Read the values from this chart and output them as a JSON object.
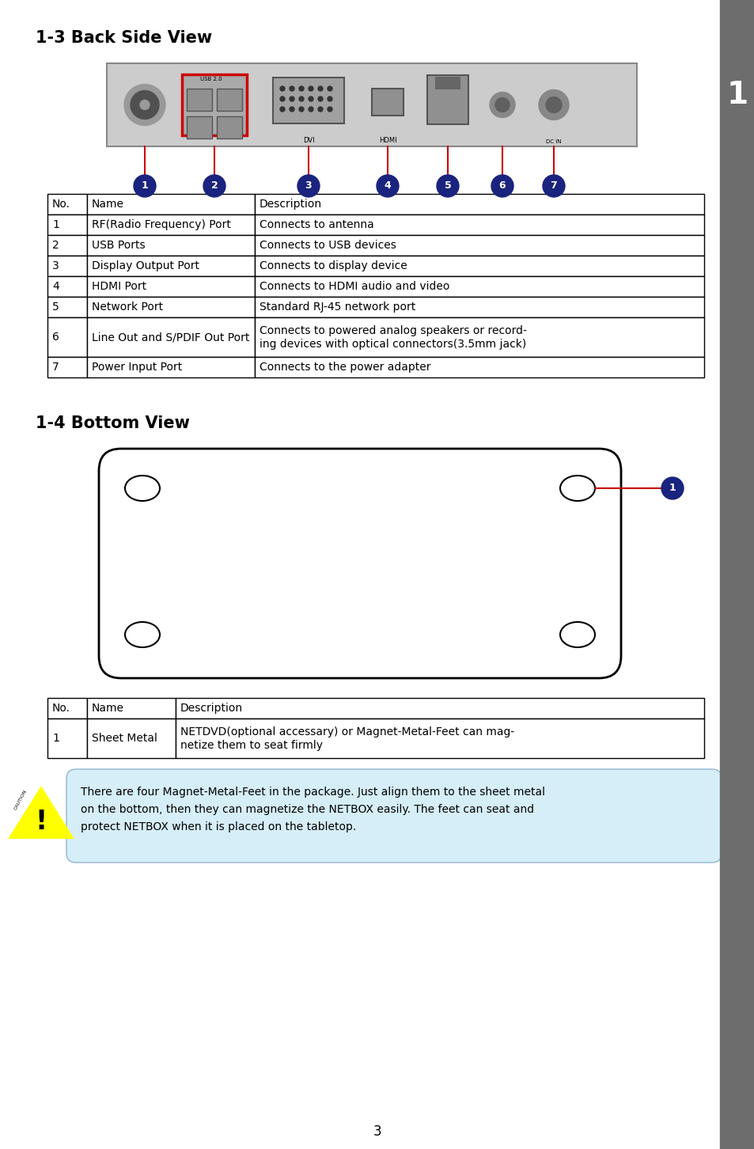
{
  "page_bg": "#ffffff",
  "title1": "1-3 Back Side View",
  "title2": "1-4 Bottom View",
  "section1_table": {
    "headers": [
      "No.",
      "Name",
      "Description"
    ],
    "rows": [
      [
        "1",
        "RF(Radio Frequency) Port",
        "Connects to antenna"
      ],
      [
        "2",
        "USB Ports",
        "Connects to USB devices"
      ],
      [
        "3",
        "Display Output Port",
        "Connects to display device"
      ],
      [
        "4",
        "HDMI Port",
        "Connects to HDMI audio and video"
      ],
      [
        "5",
        "Network Port",
        "Standard RJ-45 network port"
      ],
      [
        "6",
        "Line Out and S/PDIF Out Port",
        "Connects to powered analog speakers or record-\ning devices with optical connectors(3.5mm jack)"
      ],
      [
        "7",
        "Power Input Port",
        "Connects to the power adapter"
      ]
    ]
  },
  "section2_table": {
    "headers": [
      "No.",
      "Name",
      "Description"
    ],
    "rows": [
      [
        "1",
        "Sheet Metal",
        "NETDVD(optional accessary) or Magnet-Metal-Feet can mag-\nnetize them to seat firmly"
      ]
    ]
  },
  "caution_text": "There are four Magnet-Metal-Feet in the package. Just align them to the sheet metal\non the bottom, then they can magnetize the NETBOX easily. The feet can seat and\nprotect NETBOX when it is placed on the tabletop.",
  "page_number": "3",
  "sidebar_color": "#6d6d6d",
  "sidebar_text": "1",
  "number_circle_color": "#1a237e",
  "number_circle_text_color": "#ffffff",
  "line_color": "#cc0000",
  "usb_rect_color": "#cc0000",
  "caution_bg": "#d6eef8",
  "warning_yellow": "#ffff00"
}
